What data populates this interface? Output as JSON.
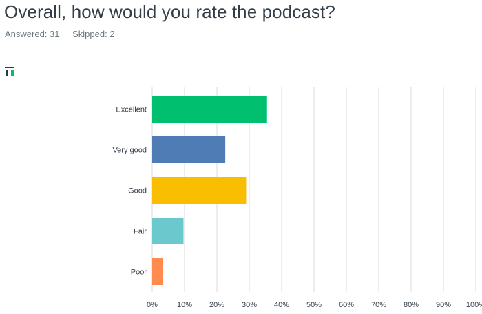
{
  "question": {
    "title": "Overall, how would you rate the podcast?",
    "answered_label": "Answered: 31",
    "skipped_label": "Skipped: 2"
  },
  "toolbar": {
    "chart_icon": "chart-type-icon",
    "icon_colors": {
      "dark": "#1f3b4d",
      "accent": "#00bf6f"
    }
  },
  "chart_data": {
    "type": "bar",
    "orientation": "horizontal",
    "categories": [
      "Excellent",
      "Very good",
      "Good",
      "Fair",
      "Poor"
    ],
    "values": [
      35.48,
      22.58,
      29.03,
      9.68,
      3.23
    ],
    "colors": [
      "#00bf6f",
      "#507cb6",
      "#f9be00",
      "#6bc8cd",
      "#ff8b4f"
    ],
    "xticks": [
      "0%",
      "10%",
      "20%",
      "30%",
      "40%",
      "50%",
      "60%",
      "70%",
      "80%",
      "90%",
      "100%"
    ],
    "xlim": [
      0,
      100
    ],
    "grid": true,
    "title": "",
    "xlabel": "",
    "ylabel": ""
  }
}
